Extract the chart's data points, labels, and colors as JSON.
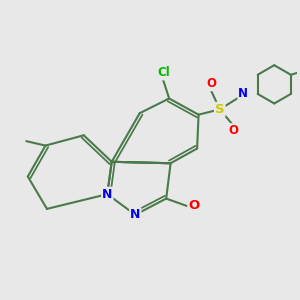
{
  "background_color": "#e8e8e8",
  "bond_color": "#4a7a4a",
  "bond_width": 1.5,
  "atom_colors": {
    "N": "#0000ee",
    "O": "#ff0000",
    "Cl": "#00bb00",
    "S": "#cccc00",
    "C": "#4a7a4a"
  },
  "figsize": [
    3.0,
    3.0
  ],
  "dpi": 100
}
